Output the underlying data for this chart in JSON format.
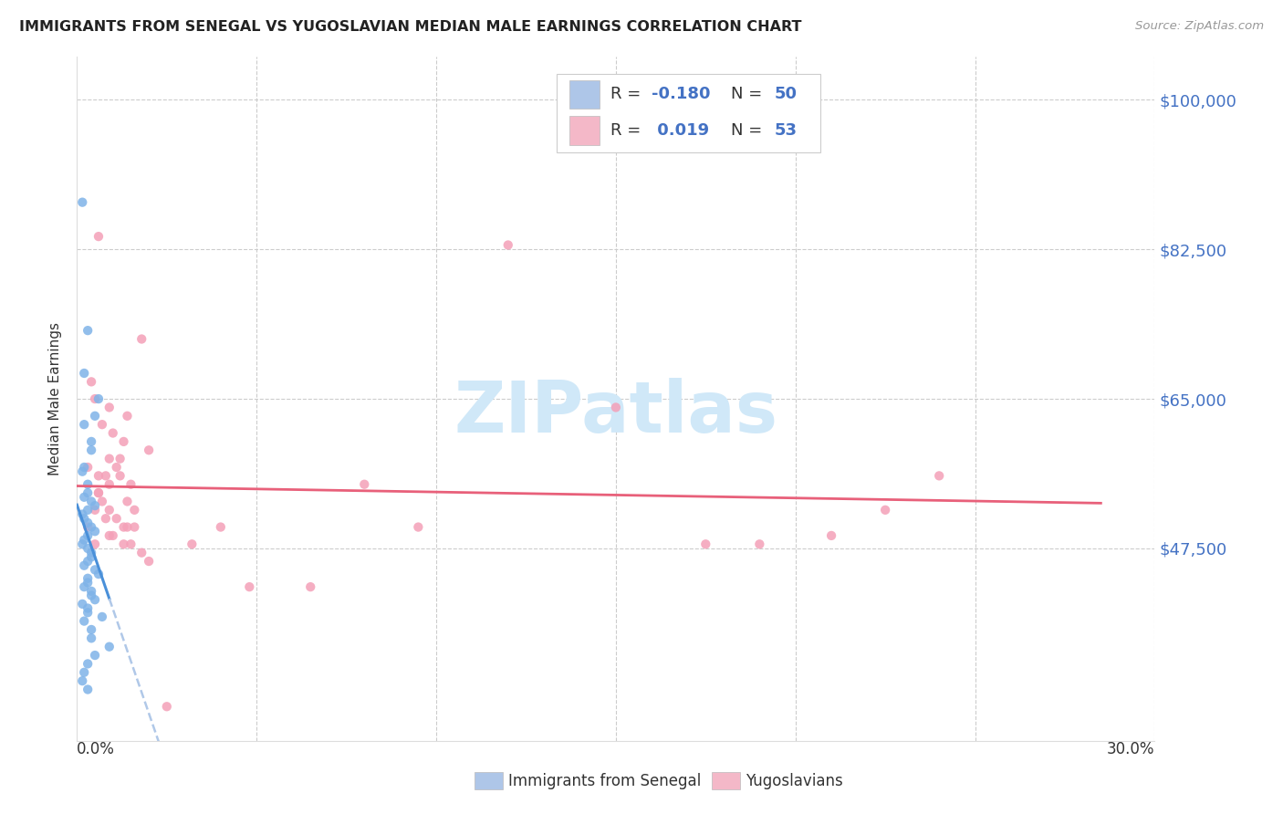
{
  "title": "IMMIGRANTS FROM SENEGAL VS YUGOSLAVIAN MEDIAN MALE EARNINGS CORRELATION CHART",
  "source": "Source: ZipAtlas.com",
  "ylabel": "Median Male Earnings",
  "yticks": [
    47500,
    65000,
    82500,
    100000
  ],
  "ytick_labels": [
    "$47,500",
    "$65,000",
    "$82,500",
    "$100,000"
  ],
  "xlim": [
    0.0,
    0.3
  ],
  "ylim": [
    25000,
    105000
  ],
  "legend1_color": "#aec6e8",
  "legend2_color": "#f4b8c8",
  "scatter_color_blue": "#7fb3e8",
  "scatter_color_pink": "#f4a0b8",
  "trend_color_blue": "#4a90d9",
  "trend_color_pink": "#e8607a",
  "trend_dash_color": "#b0c8e8",
  "watermark": "ZIPatlas",
  "watermark_color": "#d0e8f8",
  "legend_bottom_label1": "Immigrants from Senegal",
  "legend_bottom_label2": "Yugoslavians",
  "senegal_x": [
    0.0015,
    0.003,
    0.002,
    0.005,
    0.002,
    0.004,
    0.004,
    0.006,
    0.002,
    0.0015,
    0.003,
    0.003,
    0.002,
    0.004,
    0.005,
    0.003,
    0.0015,
    0.002,
    0.003,
    0.004,
    0.005,
    0.003,
    0.002,
    0.0015,
    0.003,
    0.004,
    0.004,
    0.003,
    0.002,
    0.005,
    0.006,
    0.003,
    0.003,
    0.002,
    0.004,
    0.004,
    0.005,
    0.0015,
    0.003,
    0.003,
    0.007,
    0.002,
    0.004,
    0.004,
    0.009,
    0.005,
    0.003,
    0.002,
    0.0015,
    0.003
  ],
  "senegal_y": [
    88000,
    73000,
    68000,
    63000,
    62000,
    60000,
    59000,
    65000,
    57000,
    56500,
    55000,
    54000,
    53500,
    53000,
    52500,
    52000,
    51500,
    51000,
    50500,
    50000,
    49500,
    49000,
    48500,
    48000,
    47500,
    47000,
    46500,
    46000,
    45500,
    45000,
    44500,
    44000,
    43500,
    43000,
    42500,
    42000,
    41500,
    41000,
    40500,
    40000,
    39500,
    39000,
    38000,
    37000,
    36000,
    35000,
    34000,
    33000,
    32000,
    31000
  ],
  "yugoslav_x": [
    0.003,
    0.006,
    0.009,
    0.012,
    0.014,
    0.008,
    0.01,
    0.013,
    0.016,
    0.007,
    0.005,
    0.009,
    0.011,
    0.014,
    0.015,
    0.005,
    0.004,
    0.018,
    0.02,
    0.006,
    0.009,
    0.012,
    0.014,
    0.008,
    0.01,
    0.013,
    0.016,
    0.007,
    0.006,
    0.009,
    0.011,
    0.013,
    0.015,
    0.005,
    0.018,
    0.02,
    0.025,
    0.003,
    0.006,
    0.009,
    0.15,
    0.12,
    0.08,
    0.04,
    0.065,
    0.048,
    0.032,
    0.095,
    0.175,
    0.21,
    0.19,
    0.24,
    0.225
  ],
  "yugoslav_y": [
    57000,
    84000,
    55000,
    58000,
    63000,
    56000,
    61000,
    60000,
    50000,
    62000,
    48000,
    64000,
    57000,
    53000,
    55000,
    65000,
    67000,
    72000,
    59000,
    54000,
    52000,
    56000,
    50000,
    51000,
    49000,
    48000,
    52000,
    53000,
    54000,
    49000,
    51000,
    50000,
    48000,
    52000,
    47000,
    46000,
    29000,
    50000,
    56000,
    58000,
    64000,
    83000,
    55000,
    50000,
    43000,
    43000,
    48000,
    50000,
    48000,
    49000,
    48000,
    56000,
    52000
  ]
}
